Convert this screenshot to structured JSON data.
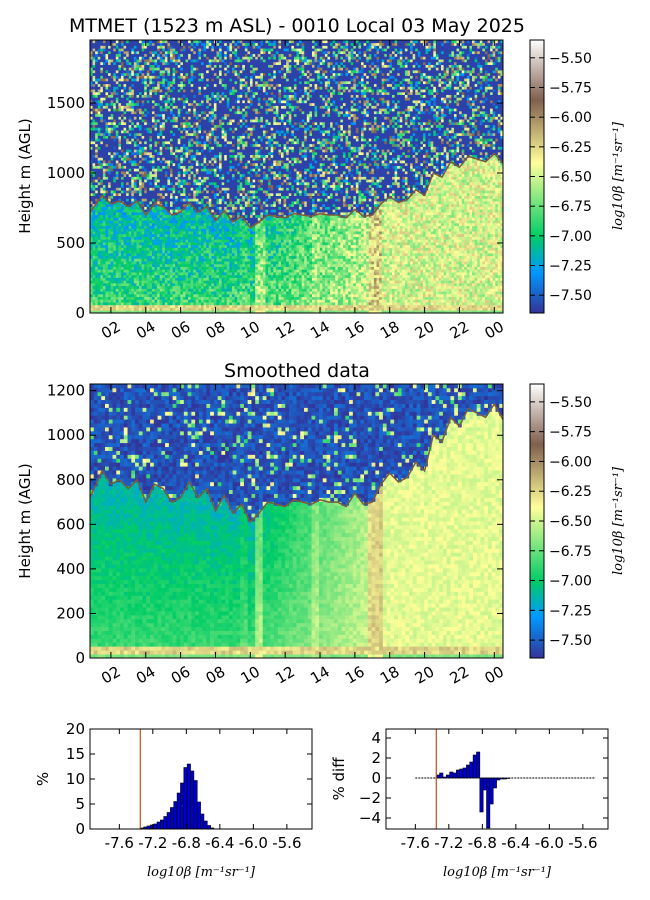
{
  "colors": {
    "colormap": [
      "#333399",
      "#0099ff",
      "#00cc66",
      "#ffff99",
      "#80604d",
      "#ffffff"
    ],
    "pbl_line": "#7a5c3a",
    "hist_bar": "#0000cc",
    "threshold_line": "#c0501a"
  },
  "chart_data": [
    {
      "id": "raw",
      "type": "heatmap",
      "title": "MTMET (1523 m ASL) - 0010 Local 03 May 2025",
      "ylabel": "Height m (AGL)",
      "xlabel": "",
      "x_range_hours": [
        0.8,
        24.5
      ],
      "xticks": [
        "02",
        "04",
        "06",
        "08",
        "10",
        "12",
        "14",
        "16",
        "18",
        "20",
        "22",
        "00"
      ],
      "xtick_hours": [
        2,
        4,
        6,
        8,
        10,
        12,
        14,
        16,
        18,
        20,
        22,
        24
      ],
      "ylim": [
        0,
        1950
      ],
      "yticks": [
        0,
        500,
        1000,
        1500
      ],
      "ytick_labels": [
        "0",
        "500",
        "1000",
        "1500"
      ],
      "colorbar": {
        "range": [
          -7.65,
          -5.35
        ],
        "ticks": [
          -5.5,
          -5.75,
          -6.0,
          -6.25,
          -6.5,
          -6.75,
          -7.0,
          -7.25,
          -7.5
        ],
        "tick_labels": [
          "−5.50",
          "−5.75",
          "−6.00",
          "−6.25",
          "−6.50",
          "−6.75",
          "−7.00",
          "−7.25",
          "−7.50"
        ],
        "label": "log10β [m⁻¹sr⁻¹]"
      },
      "pbl_height": {
        "hours": [
          0.8,
          1.5,
          2,
          2.5,
          3,
          3.5,
          4,
          4.5,
          5,
          5.5,
          6,
          6.5,
          7,
          7.5,
          8,
          8.5,
          9,
          9.5,
          10,
          10.5,
          11,
          11.5,
          12,
          12.5,
          13,
          13.5,
          14,
          14.5,
          15,
          15.5,
          16,
          16.5,
          17,
          17.5,
          18,
          18.5,
          19,
          19.5,
          20,
          20.5,
          21,
          21.5,
          22,
          22.5,
          23,
          23.5,
          24,
          24.5
        ],
        "heights": [
          720,
          840,
          780,
          800,
          760,
          800,
          700,
          780,
          760,
          700,
          720,
          790,
          720,
          760,
          660,
          730,
          650,
          690,
          610,
          650,
          700,
          690,
          680,
          710,
          700,
          690,
          710,
          700,
          700,
          680,
          740,
          690,
          700,
          780,
          830,
          790,
          810,
          880,
          840,
          1000,
          970,
          1080,
          1040,
          1120,
          1100,
          1080,
          1140,
          1070
        ]
      }
    },
    {
      "id": "smoothed",
      "type": "heatmap",
      "title": "Smoothed data",
      "ylabel": "Height m (AGL)",
      "xlabel": "",
      "x_range_hours": [
        0.8,
        24.5
      ],
      "xticks": [
        "02",
        "04",
        "06",
        "08",
        "10",
        "12",
        "14",
        "16",
        "18",
        "20",
        "22",
        "00"
      ],
      "xtick_hours": [
        2,
        4,
        6,
        8,
        10,
        12,
        14,
        16,
        18,
        20,
        22,
        24
      ],
      "ylim": [
        0,
        1230
      ],
      "yticks": [
        0,
        200,
        400,
        600,
        800,
        1000,
        1200
      ],
      "ytick_labels": [
        "0",
        "200",
        "400",
        "600",
        "800",
        "1000",
        "1200"
      ],
      "colorbar": {
        "range": [
          -7.65,
          -5.35
        ],
        "ticks": [
          -5.5,
          -5.75,
          -6.0,
          -6.25,
          -6.5,
          -6.75,
          -7.0,
          -7.25,
          -7.5
        ],
        "tick_labels": [
          "−5.50",
          "−5.75",
          "−6.00",
          "−6.25",
          "−6.50",
          "−6.75",
          "−7.00",
          "−7.25",
          "−7.50"
        ],
        "label": "log10β [m⁻¹sr⁻¹]"
      },
      "pbl_height": {
        "hours": [
          0.8,
          1.5,
          2,
          2.5,
          3,
          3.5,
          4,
          4.5,
          5,
          5.5,
          6,
          6.5,
          7,
          7.5,
          8,
          8.5,
          9,
          9.5,
          10,
          10.5,
          11,
          11.5,
          12,
          12.5,
          13,
          13.5,
          14,
          14.5,
          15,
          15.5,
          16,
          16.5,
          17,
          17.5,
          18,
          18.5,
          19,
          19.5,
          20,
          20.5,
          21,
          21.5,
          22,
          22.5,
          23,
          23.5,
          24,
          24.5
        ],
        "heights": [
          720,
          840,
          780,
          800,
          760,
          800,
          700,
          780,
          760,
          700,
          720,
          790,
          720,
          760,
          660,
          730,
          650,
          690,
          610,
          650,
          700,
          690,
          680,
          710,
          700,
          690,
          710,
          700,
          700,
          680,
          740,
          690,
          700,
          780,
          830,
          790,
          810,
          880,
          840,
          1000,
          970,
          1080,
          1040,
          1120,
          1100,
          1080,
          1140,
          1070
        ]
      }
    },
    {
      "id": "hist",
      "type": "bar",
      "title": "",
      "ylabel": "%",
      "xlabel": "log10β [m⁻¹sr⁻¹]",
      "xlim": [
        -7.95,
        -5.3
      ],
      "ylim": [
        0,
        20
      ],
      "xticks": [
        -7.6,
        -7.2,
        -6.8,
        -6.4,
        -6.0,
        -5.6
      ],
      "xtick_labels": [
        "-7.6",
        "-7.2",
        "-6.8",
        "-6.4",
        "-6.0",
        "-5.6"
      ],
      "yticks": [
        0,
        5,
        10,
        15,
        20
      ],
      "ytick_labels": [
        "0",
        "5",
        "10",
        "15",
        "20"
      ],
      "threshold": -7.35,
      "bin_width": 0.04,
      "x": [
        -7.35,
        -7.31,
        -7.27,
        -7.23,
        -7.19,
        -7.15,
        -7.11,
        -7.07,
        -7.03,
        -6.99,
        -6.95,
        -6.91,
        -6.87,
        -6.83,
        -6.79,
        -6.75,
        -6.71,
        -6.67,
        -6.63,
        -6.59,
        -6.55,
        -6.51
      ],
      "values": [
        0.2,
        0.4,
        0.6,
        0.8,
        1.0,
        1.4,
        1.8,
        2.5,
        3.3,
        4.3,
        5.5,
        7.2,
        9.2,
        12.3,
        13.0,
        11.6,
        9.7,
        5.4,
        3.0,
        1.6,
        0.7,
        0.2
      ]
    },
    {
      "id": "diff",
      "type": "bar",
      "title": "",
      "ylabel": "% diff",
      "xlabel": "log10β [m⁻¹sr⁻¹]",
      "xlim": [
        -7.95,
        -5.3
      ],
      "ylim": [
        -5.1,
        4.9
      ],
      "xticks": [
        -7.6,
        -7.2,
        -6.8,
        -6.4,
        -6.0,
        -5.6
      ],
      "xtick_labels": [
        "-7.6",
        "-7.2",
        "-6.8",
        "-6.4",
        "-6.0",
        "-5.6"
      ],
      "yticks": [
        -4,
        -2,
        0,
        2,
        4
      ],
      "ytick_labels": [
        "−4",
        "−2",
        "0",
        "2",
        "4"
      ],
      "threshold": -7.35,
      "bin_width": 0.04,
      "line_range": [
        -7.6,
        -5.45
      ],
      "x": [
        -7.35,
        -7.31,
        -7.27,
        -7.23,
        -7.19,
        -7.15,
        -7.11,
        -7.07,
        -7.03,
        -6.99,
        -6.95,
        -6.91,
        -6.87,
        -6.83,
        -6.79,
        -6.75,
        -6.71,
        -6.67,
        -6.63,
        -6.59,
        -6.55,
        -6.51
      ],
      "values": [
        0.3,
        0.5,
        0.1,
        0.3,
        0.6,
        0.5,
        0.8,
        0.9,
        1.0,
        1.3,
        1.6,
        2.3,
        2.6,
        -3.4,
        -1.2,
        -5.0,
        -2.6,
        -1.0,
        -0.2,
        -0.1,
        -0.1,
        -0.05
      ]
    }
  ]
}
